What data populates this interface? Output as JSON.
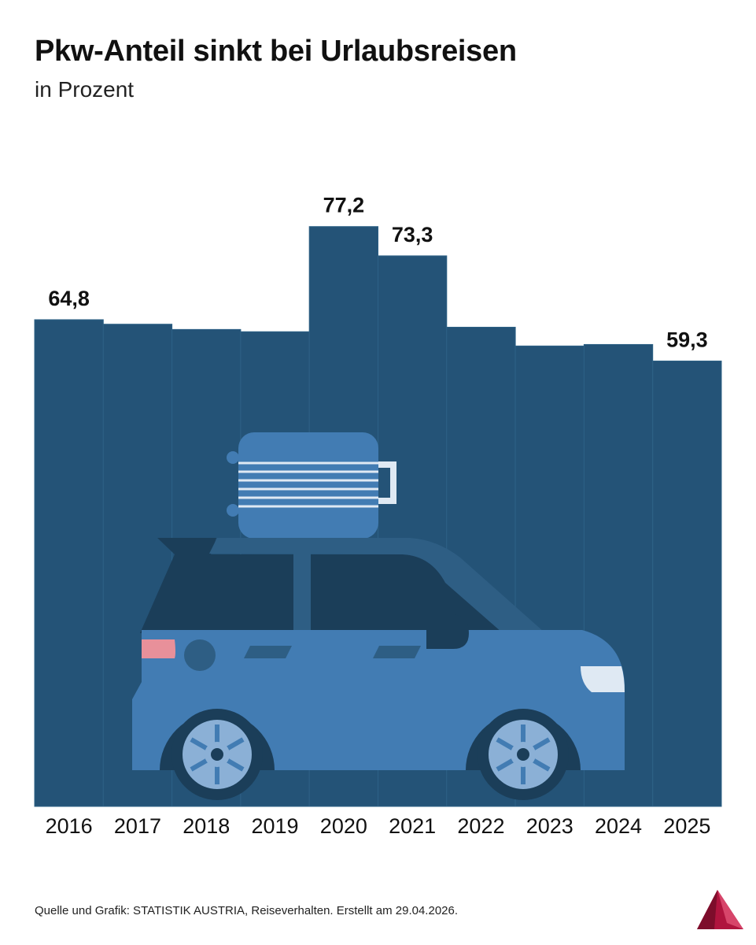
{
  "title": "Pkw-Anteil sinkt bei Urlaubsreisen",
  "subtitle": "in Prozent",
  "source": "Quelle und Grafik: STATISTIK AUSTRIA, Reiseverhalten. Erstellt am 29.04.2026.",
  "logo_icon": "statistik-austria-logo-icon",
  "illustration_icon": "car-with-suitcase-icon",
  "colors": {
    "bar": "#245377",
    "bar_border": "#2d6186",
    "car_body": "#427cb3",
    "car_dark": "#1b3e59",
    "suitcase": "#427cb3",
    "tail_light": "#e8909a",
    "head_light": "#dfe9f3",
    "wheel_rim": "#8bb0d6",
    "logo": "#b0143e"
  },
  "chart_data": {
    "type": "bar",
    "title": "Pkw-Anteil sinkt bei Urlaubsreisen",
    "subtitle": "in Prozent",
    "categories": [
      "2016",
      "2017",
      "2018",
      "2019",
      "2020",
      "2021",
      "2022",
      "2023",
      "2024",
      "2025"
    ],
    "values": [
      64.8,
      64.2,
      63.5,
      63.2,
      77.2,
      73.3,
      63.8,
      61.3,
      61.5,
      59.3
    ],
    "labels": [
      "64,8",
      "",
      "",
      "",
      "77,2",
      "73,3",
      "",
      "",
      "",
      "59,3"
    ],
    "ylim": [
      0,
      80
    ],
    "grid": false,
    "legend": "none"
  }
}
